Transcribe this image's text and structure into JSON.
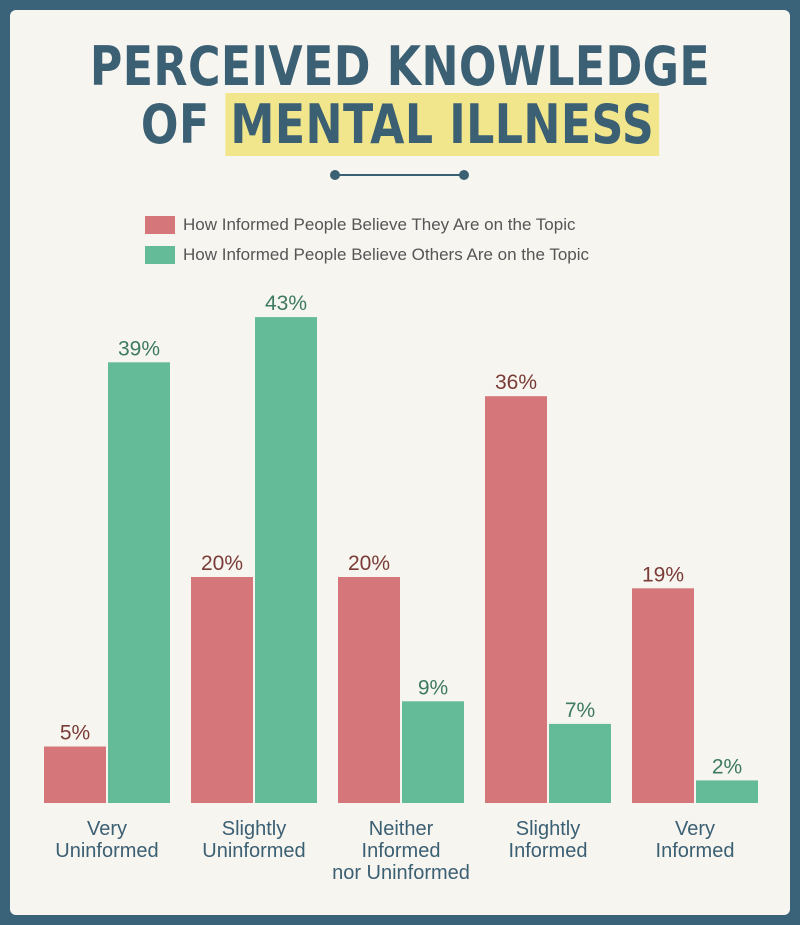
{
  "header": {
    "title_line1": "PERCEIVED KNOWLEDGE",
    "title_line2_prefix": "OF",
    "title_line2_highlight": "MENTAL ILLNESS"
  },
  "colors": {
    "self": "#d4767a",
    "others": "#64bb98",
    "accent": "#3b5f73",
    "highlight": "#f2e68c"
  },
  "chart_data": {
    "type": "bar",
    "title": "PERCEIVED KNOWLEDGE OF MENTAL ILLNESS",
    "categories": [
      [
        "Very",
        "Uninformed"
      ],
      [
        "Slightly",
        "Uninformed"
      ],
      [
        "Neither",
        "Informed",
        "nor Uninformed"
      ],
      [
        "Slightly",
        "Informed"
      ],
      [
        "Very",
        "Informed"
      ]
    ],
    "series": [
      {
        "name": "How Informed People Believe They Are on the Topic",
        "values": [
          5,
          20,
          20,
          36,
          19
        ],
        "labels": [
          "5%",
          "20%",
          "20%",
          "36%",
          "19%"
        ]
      },
      {
        "name": "How Informed People Believe Others Are on the Topic",
        "values": [
          39,
          43,
          9,
          7,
          2
        ],
        "labels": [
          "39%",
          "43%",
          "9%",
          "7%",
          "2%"
        ]
      }
    ],
    "ylim": [
      0,
      43
    ],
    "grid": false,
    "legend_position": "top"
  }
}
